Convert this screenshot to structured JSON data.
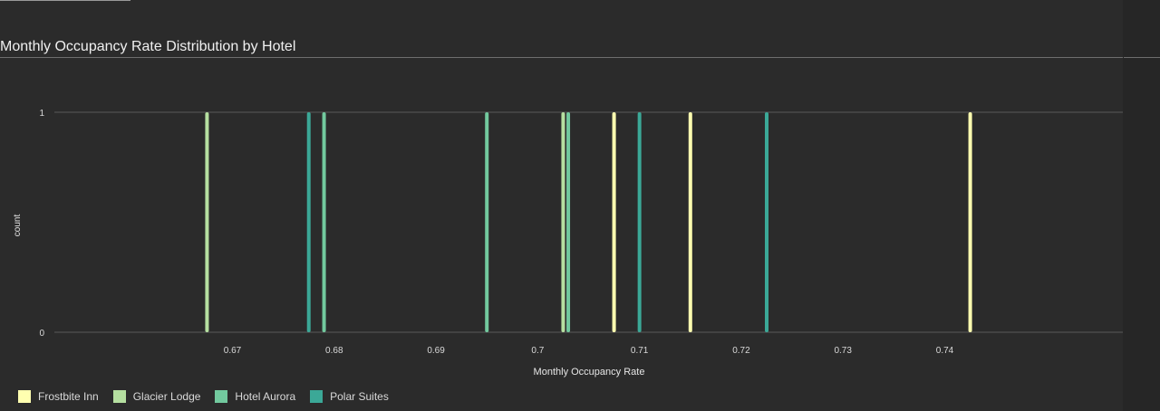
{
  "title": "Monthly Occupancy Rate Distribution by Hotel",
  "chart_data": {
    "type": "bar",
    "title": "Monthly Occupancy Rate Distribution by Hotel",
    "xlabel": "Monthly Occupancy Rate",
    "ylabel": "count",
    "xlim": [
      0.6525,
      0.7575
    ],
    "ylim": [
      0,
      1
    ],
    "x_ticks": [
      "0.67",
      "0.68",
      "0.69",
      "0.7",
      "0.71",
      "0.72",
      "0.73",
      "0.74"
    ],
    "x_tick_values": [
      0.67,
      0.68,
      0.69,
      0.7,
      0.71,
      0.72,
      0.73,
      0.74
    ],
    "y_ticks": [
      "0",
      "1"
    ],
    "y_tick_values": [
      0,
      1
    ],
    "grid": "horizontal",
    "legend_position": "bottom-left",
    "series": [
      {
        "name": "Frostbite Inn",
        "color": "#ffffb0",
        "x": [
          0.7075,
          0.715,
          0.7425
        ],
        "values": [
          1,
          1,
          1
        ]
      },
      {
        "name": "Glacier Lodge",
        "color": "#b5dfa0",
        "x": [
          0.6675,
          0.7025
        ],
        "values": [
          1,
          1
        ]
      },
      {
        "name": "Hotel Aurora",
        "color": "#72c99e",
        "x": [
          0.679,
          0.695,
          0.703
        ],
        "values": [
          1,
          1,
          1
        ]
      },
      {
        "name": "Polar Suites",
        "color": "#3ba897",
        "x": [
          0.6775,
          0.71,
          0.7225
        ],
        "values": [
          1,
          1,
          1
        ]
      }
    ]
  }
}
